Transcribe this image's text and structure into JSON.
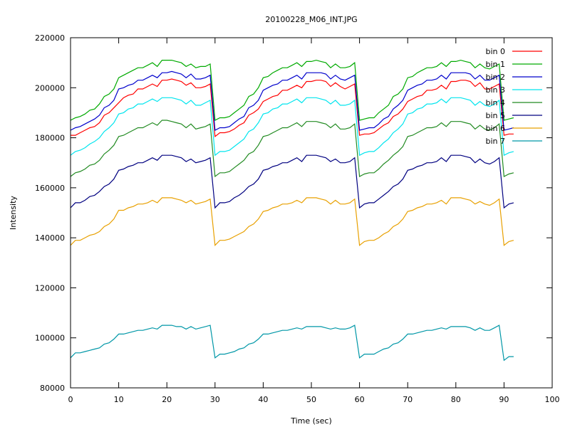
{
  "chart_data": {
    "type": "line",
    "title": "20100228_M06_INT.JPG",
    "xlabel": "Time (sec)",
    "ylabel": "Intensity",
    "xlim": [
      0,
      100
    ],
    "ylim": [
      80000,
      220000
    ],
    "x_ticks": [
      0,
      10,
      20,
      30,
      40,
      50,
      60,
      70,
      80,
      90,
      100
    ],
    "y_ticks": [
      80000,
      100000,
      120000,
      140000,
      160000,
      180000,
      200000,
      220000
    ],
    "grid": false,
    "legend_position": "top-right",
    "x": [
      0,
      1,
      2,
      3,
      4,
      5,
      6,
      7,
      8,
      9,
      10,
      11,
      12,
      13,
      14,
      15,
      16,
      17,
      18,
      19,
      20,
      21,
      22,
      23,
      24,
      25,
      26,
      27,
      28,
      29,
      30,
      31,
      32,
      33,
      34,
      35,
      36,
      37,
      38,
      39,
      40,
      41,
      42,
      43,
      44,
      45,
      46,
      47,
      48,
      49,
      50,
      51,
      52,
      53,
      54,
      55,
      56,
      57,
      58,
      59,
      60,
      61,
      62,
      63,
      64,
      65,
      66,
      67,
      68,
      69,
      70,
      71,
      72,
      73,
      74,
      75,
      76,
      77,
      78,
      79,
      80,
      81,
      82,
      83,
      84,
      85,
      86,
      87,
      88,
      89,
      90,
      91,
      92
    ],
    "series": [
      {
        "name": "bin 0",
        "color": "#ff0000",
        "values": [
          181000,
          181000,
          182000,
          183000,
          184000,
          184500,
          186000,
          189000,
          190000,
          192000,
          194000,
          196000,
          197000,
          197500,
          199500,
          199500,
          200500,
          201500,
          200500,
          203000,
          203000,
          203500,
          203000,
          202500,
          201000,
          202000,
          200000,
          200000,
          200500,
          201500,
          180500,
          182000,
          182000,
          182500,
          183500,
          185000,
          186000,
          189000,
          190000,
          191500,
          194500,
          195500,
          196500,
          197000,
          199000,
          199000,
          200000,
          201000,
          200000,
          202500,
          202500,
          203000,
          203000,
          202500,
          200500,
          202000,
          200500,
          199500,
          200500,
          201500,
          181000,
          181500,
          181500,
          182000,
          183500,
          185000,
          186000,
          188500,
          189500,
          191500,
          194500,
          195500,
          196500,
          197000,
          199000,
          199000,
          199500,
          201000,
          199500,
          202500,
          202500,
          203000,
          203000,
          202500,
          200500,
          202000,
          199500,
          199500,
          200500,
          201500,
          181000,
          181500,
          181500
        ]
      },
      {
        "name": "bin 1",
        "color": "#00aa00",
        "values": [
          187000,
          188000,
          188500,
          189500,
          191000,
          191500,
          193500,
          196500,
          197500,
          199500,
          204000,
          205000,
          206000,
          207000,
          208000,
          208000,
          209000,
          210000,
          208500,
          211000,
          211000,
          211000,
          210500,
          210000,
          208500,
          209500,
          208000,
          208500,
          208500,
          209500,
          187000,
          188000,
          188000,
          188500,
          190000,
          191500,
          193000,
          196500,
          197500,
          200000,
          204000,
          204500,
          206000,
          207000,
          208000,
          208000,
          209000,
          210000,
          208500,
          210500,
          210500,
          211000,
          210500,
          210000,
          208000,
          209500,
          208000,
          208000,
          208500,
          210000,
          187000,
          187500,
          188000,
          188000,
          190000,
          191500,
          193000,
          196500,
          197500,
          199500,
          204000,
          204500,
          206000,
          207000,
          208000,
          208000,
          208500,
          210000,
          208500,
          210500,
          210500,
          211000,
          210500,
          210000,
          208000,
          209500,
          208000,
          207500,
          208500,
          209500,
          187000,
          187500,
          188000
        ]
      },
      {
        "name": "bin 2",
        "color": "#0000cc",
        "values": [
          183000,
          184000,
          184500,
          185500,
          186500,
          187500,
          189000,
          192000,
          193000,
          195000,
          199500,
          200000,
          201000,
          201500,
          203000,
          203000,
          204000,
          205000,
          204000,
          206000,
          206000,
          206500,
          206000,
          205500,
          204000,
          205500,
          203500,
          203500,
          204000,
          205000,
          183000,
          184000,
          184000,
          184500,
          186000,
          187500,
          188500,
          192000,
          193000,
          195000,
          199000,
          200000,
          201000,
          201500,
          203000,
          203000,
          204000,
          205000,
          203500,
          206000,
          206000,
          206000,
          206000,
          205500,
          203500,
          205000,
          203500,
          203000,
          204000,
          205000,
          183000,
          183500,
          184000,
          184000,
          185500,
          187500,
          188500,
          191500,
          193000,
          195000,
          199000,
          200000,
          201000,
          201500,
          203000,
          203000,
          203500,
          205000,
          203500,
          206000,
          206000,
          206000,
          206000,
          205500,
          203500,
          205000,
          203000,
          203000,
          204000,
          205000,
          183000,
          183500,
          184000
        ]
      },
      {
        "name": "bin 3",
        "color": "#00e5ee",
        "values": [
          173000,
          174500,
          175000,
          176000,
          177500,
          178500,
          180000,
          182500,
          184000,
          186000,
          189500,
          190000,
          191500,
          192000,
          193500,
          193500,
          194500,
          195500,
          194500,
          196000,
          196000,
          196000,
          195500,
          195000,
          193500,
          195000,
          193000,
          193000,
          194000,
          195000,
          173000,
          174500,
          174500,
          175000,
          176500,
          178000,
          179500,
          182500,
          183500,
          186000,
          189500,
          190000,
          191500,
          192000,
          193500,
          193500,
          194500,
          195500,
          194000,
          196000,
          196000,
          196000,
          195500,
          195000,
          193500,
          195000,
          193000,
          193000,
          193500,
          195000,
          173000,
          174000,
          174500,
          174500,
          176000,
          178000,
          179500,
          182000,
          183500,
          185500,
          189500,
          190000,
          191500,
          192000,
          193500,
          193500,
          194000,
          195500,
          194000,
          196000,
          196000,
          196000,
          195500,
          195000,
          193000,
          194500,
          193000,
          192500,
          193500,
          195000,
          173000,
          174000,
          174500
        ]
      },
      {
        "name": "bin 4",
        "color": "#228b22",
        "values": [
          164500,
          166000,
          166500,
          167500,
          169000,
          169500,
          171000,
          173500,
          175000,
          177000,
          180500,
          181000,
          182000,
          183000,
          184000,
          184000,
          185000,
          186000,
          185000,
          187000,
          187000,
          186500,
          186000,
          185500,
          184000,
          185500,
          183500,
          184000,
          184500,
          185500,
          164500,
          166000,
          166000,
          166500,
          168000,
          169500,
          171000,
          173500,
          174500,
          177000,
          180500,
          181000,
          182000,
          183000,
          184000,
          184000,
          185000,
          186000,
          184500,
          186500,
          186500,
          186500,
          186000,
          185500,
          184000,
          185500,
          183500,
          183500,
          184000,
          185500,
          164500,
          165500,
          166000,
          166000,
          167500,
          169500,
          171000,
          173000,
          174500,
          176500,
          180500,
          181000,
          182000,
          183000,
          184000,
          184000,
          184500,
          186000,
          184500,
          186500,
          186500,
          186500,
          186000,
          185500,
          183500,
          185000,
          183500,
          183000,
          184000,
          185500,
          164500,
          165500,
          166000
        ]
      },
      {
        "name": "bin 5",
        "color": "#000080",
        "values": [
          152000,
          154000,
          154000,
          155000,
          156500,
          157000,
          158500,
          160500,
          161500,
          163500,
          167000,
          167500,
          168500,
          169000,
          170000,
          170000,
          171000,
          172000,
          171000,
          173000,
          173000,
          173000,
          172500,
          172000,
          170500,
          171500,
          170000,
          170500,
          171000,
          172000,
          152000,
          154000,
          154000,
          154500,
          156000,
          157000,
          158500,
          160500,
          161500,
          163500,
          167000,
          167500,
          168500,
          169000,
          170000,
          170000,
          171000,
          172000,
          170500,
          173000,
          173000,
          173000,
          172500,
          172000,
          170500,
          171500,
          170000,
          170000,
          170500,
          172000,
          152000,
          153500,
          154000,
          154000,
          155500,
          157000,
          158500,
          160500,
          161500,
          163500,
          167000,
          167500,
          168500,
          169000,
          170000,
          170000,
          170500,
          172000,
          170500,
          173000,
          173000,
          173000,
          172500,
          172000,
          170000,
          171500,
          170000,
          169500,
          170500,
          172000,
          152000,
          153500,
          154000
        ]
      },
      {
        "name": "bin 6",
        "color": "#e8a000",
        "values": [
          137000,
          139000,
          139000,
          140000,
          141000,
          141500,
          142500,
          144500,
          145500,
          147500,
          151000,
          151000,
          152000,
          152500,
          153500,
          153500,
          154000,
          155000,
          154000,
          156000,
          156000,
          156000,
          155500,
          155000,
          154000,
          155000,
          153500,
          154000,
          154500,
          155500,
          137000,
          139000,
          139000,
          139500,
          140500,
          141500,
          142500,
          144500,
          145500,
          147500,
          150500,
          151000,
          152000,
          152500,
          153500,
          153500,
          154000,
          155000,
          154000,
          156000,
          156000,
          156000,
          155500,
          155000,
          153500,
          155000,
          153500,
          153500,
          154000,
          155500,
          137000,
          138500,
          139000,
          139000,
          140000,
          141500,
          142500,
          144500,
          145500,
          147500,
          150500,
          151000,
          152000,
          152500,
          153500,
          153500,
          154000,
          155000,
          153500,
          156000,
          156000,
          156000,
          155500,
          155000,
          153500,
          154500,
          153500,
          153000,
          154000,
          155500,
          137000,
          138500,
          139000
        ]
      },
      {
        "name": "bin 7",
        "color": "#0097a7",
        "values": [
          92000,
          94000,
          94000,
          94500,
          95000,
          95500,
          96000,
          97500,
          98000,
          99500,
          101500,
          101500,
          102000,
          102500,
          103000,
          103000,
          103500,
          104000,
          103500,
          105000,
          105000,
          105000,
          104500,
          104500,
          103500,
          104500,
          103500,
          104000,
          104500,
          105000,
          92000,
          93500,
          93500,
          94000,
          94500,
          95500,
          96000,
          97500,
          98000,
          99500,
          101500,
          101500,
          102000,
          102500,
          103000,
          103000,
          103500,
          104000,
          103500,
          104500,
          104500,
          104500,
          104500,
          104000,
          103500,
          104000,
          103500,
          103500,
          104000,
          105000,
          92000,
          93500,
          93500,
          93500,
          94500,
          95500,
          96000,
          97500,
          98000,
          99500,
          101500,
          101500,
          102000,
          102500,
          103000,
          103000,
          103500,
          104000,
          103500,
          104500,
          104500,
          104500,
          104500,
          104000,
          103000,
          104000,
          103000,
          103000,
          104000,
          105000,
          91000,
          92500,
          92500
        ]
      }
    ]
  }
}
